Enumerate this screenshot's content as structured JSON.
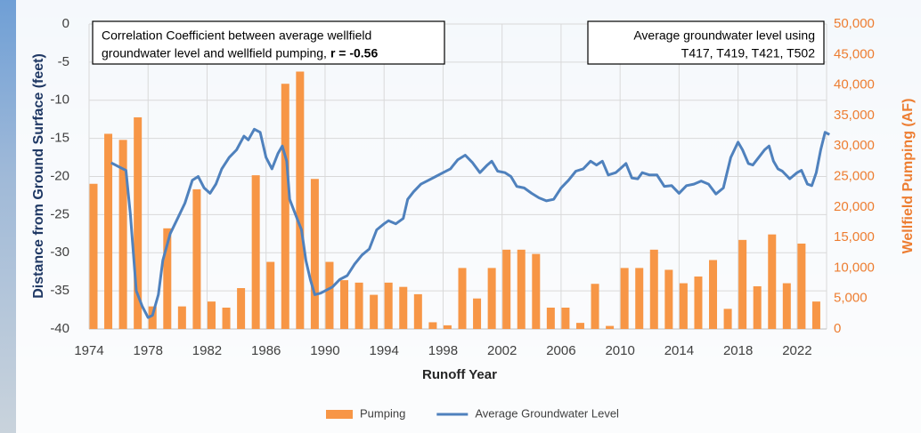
{
  "chart_data": {
    "type": "combo",
    "xlabel": "Runoff Year",
    "ylabel": "Distance from Ground Surface (feet)",
    "y2label": "Wellfield Pumping (AF)",
    "xlim": [
      1974,
      2024
    ],
    "xticks": [
      1974,
      1978,
      1982,
      1986,
      1990,
      1994,
      1998,
      2002,
      2006,
      2010,
      2014,
      2018,
      2022
    ],
    "ylim": [
      -40,
      0
    ],
    "yticks": [
      0,
      -5,
      -10,
      -15,
      -20,
      -25,
      -30,
      -35,
      -40
    ],
    "y2lim": [
      0,
      50000
    ],
    "y2ticks": [
      0,
      {
        "value": 5000,
        "label": "5,000"
      },
      {
        "value": 10000,
        "label": "10,000"
      },
      {
        "value": 15000,
        "label": "15,000"
      },
      {
        "value": 20000,
        "label": "20,000"
      },
      {
        "value": 25000,
        "label": "25,000"
      },
      {
        "value": 30000,
        "label": "30,000"
      },
      {
        "value": 35000,
        "label": "35,000"
      },
      {
        "value": 40000,
        "label": "40,000"
      },
      {
        "value": 45000,
        "label": "45,000"
      },
      {
        "value": 50000,
        "label": "50,000"
      }
    ],
    "grid": true,
    "legend": "bottom",
    "annotations": [
      {
        "lines": [
          "Correlation Coefficient between average wellfield",
          "groundwater level and wellfield pumping,"
        ],
        "emphasis": "r = -0.56"
      },
      {
        "lines": [
          "Average groundwater level using",
          "T417, T419, T421, T502"
        ]
      }
    ],
    "series": [
      {
        "name": "Pumping",
        "type": "bar",
        "axis": "y2",
        "color": "#f79646",
        "x": [
          1974,
          1975,
          1976,
          1977,
          1978,
          1979,
          1980,
          1981,
          1982,
          1983,
          1984,
          1985,
          1986,
          1987,
          1988,
          1989,
          1990,
          1991,
          1992,
          1993,
          1994,
          1995,
          1996,
          1997,
          1998,
          1999,
          2000,
          2001,
          2002,
          2003,
          2004,
          2005,
          2006,
          2007,
          2008,
          2009,
          2010,
          2011,
          2012,
          2013,
          2014,
          2015,
          2016,
          2017,
          2018,
          2019,
          2020,
          2021,
          2022,
          2023
        ],
        "values": [
          23800,
          32000,
          31000,
          34700,
          3700,
          16500,
          3700,
          22900,
          4500,
          3500,
          6700,
          25200,
          11000,
          40200,
          42200,
          24600,
          11000,
          8000,
          7600,
          5600,
          7600,
          6900,
          5700,
          1100,
          600,
          10000,
          5000,
          10000,
          13000,
          13000,
          12300,
          3500,
          3500,
          1000,
          7400,
          500,
          10000,
          10000,
          13000,
          9700,
          7500,
          8600,
          11300,
          3300,
          14600,
          7000,
          15500,
          7500,
          14000,
          4500
        ]
      },
      {
        "name": "Average Groundwater Level",
        "type": "line",
        "color": "#4f81bd",
        "x": [
          1975.5,
          1976,
          1976.5,
          1976.8,
          1977.2,
          1977.6,
          1978,
          1978.3,
          1978.7,
          1979,
          1979.5,
          1980,
          1980.5,
          1981,
          1981.4,
          1981.8,
          1982.2,
          1982.6,
          1983,
          1983.5,
          1984,
          1984.5,
          1984.8,
          1985.2,
          1985.6,
          1986,
          1986.4,
          1986.8,
          1987.1,
          1987.4,
          1987.6,
          1988,
          1988.4,
          1988.7,
          1989,
          1989.3,
          1989.7,
          1990,
          1990.5,
          1991,
          1991.5,
          1992,
          1992.5,
          1993,
          1993.5,
          1994,
          1994.3,
          1994.8,
          1995.3,
          1995.6,
          1996,
          1996.5,
          1997,
          1997.5,
          1998,
          1998.5,
          1999,
          1999.5,
          2000,
          2000.5,
          2001,
          2001.3,
          2001.7,
          2002.2,
          2002.6,
          2003,
          2003.5,
          2004,
          2004.5,
          2005,
          2005.5,
          2006,
          2006.5,
          2007,
          2007.5,
          2008,
          2008.4,
          2008.8,
          2009.2,
          2009.7,
          2010,
          2010.4,
          2010.8,
          2011.2,
          2011.5,
          2012,
          2012.5,
          2013,
          2013.5,
          2014,
          2014.5,
          2015,
          2015.5,
          2016,
          2016.5,
          2017,
          2017.5,
          2018,
          2018.3,
          2018.7,
          2019,
          2019.4,
          2019.8,
          2020.1,
          2020.4,
          2020.7,
          2021,
          2021.5,
          2022,
          2022.3,
          2022.7,
          2023,
          2023.3,
          2023.6,
          2023.9,
          2024.2
        ],
        "values": [
          -18.2,
          -18.7,
          -19.2,
          -25,
          -35,
          -37,
          -38.5,
          -38.2,
          -35.5,
          -31,
          -27.5,
          -25.5,
          -23.5,
          -20.5,
          -20,
          -21.5,
          -22.2,
          -21,
          -19,
          -17.5,
          -16.5,
          -14.7,
          -15.2,
          -13.8,
          -14.2,
          -17.5,
          -19,
          -17,
          -16,
          -18,
          -23,
          -25,
          -27,
          -31,
          -33.5,
          -35.5,
          -35.3,
          -35,
          -34.5,
          -33.5,
          -33,
          -31.5,
          -30.3,
          -29.5,
          -27,
          -26.2,
          -25.8,
          -26.2,
          -25.5,
          -23,
          -22,
          -21,
          -20.5,
          -20,
          -19.5,
          -19,
          -17.8,
          -17.2,
          -18.2,
          -19.5,
          -18.5,
          -18,
          -19.3,
          -19.5,
          -20,
          -21.3,
          -21.5,
          -22.2,
          -22.8,
          -23.2,
          -23,
          -21.5,
          -20.5,
          -19.3,
          -19,
          -18,
          -18.5,
          -18,
          -19.8,
          -19.5,
          -19,
          -18.3,
          -20.2,
          -20.3,
          -19.5,
          -19.8,
          -19.8,
          -21.3,
          -21.2,
          -22.2,
          -21.2,
          -21,
          -20.6,
          -21,
          -22.3,
          -21.5,
          -17.5,
          -15.5,
          -16.5,
          -18.3,
          -18.5,
          -17.5,
          -16.5,
          -16,
          -18,
          -19,
          -19.3,
          -20.3,
          -19.5,
          -19.2,
          -21,
          -21.2,
          -19.5,
          -16.5,
          -14.2,
          -14.5
        ]
      }
    ]
  }
}
